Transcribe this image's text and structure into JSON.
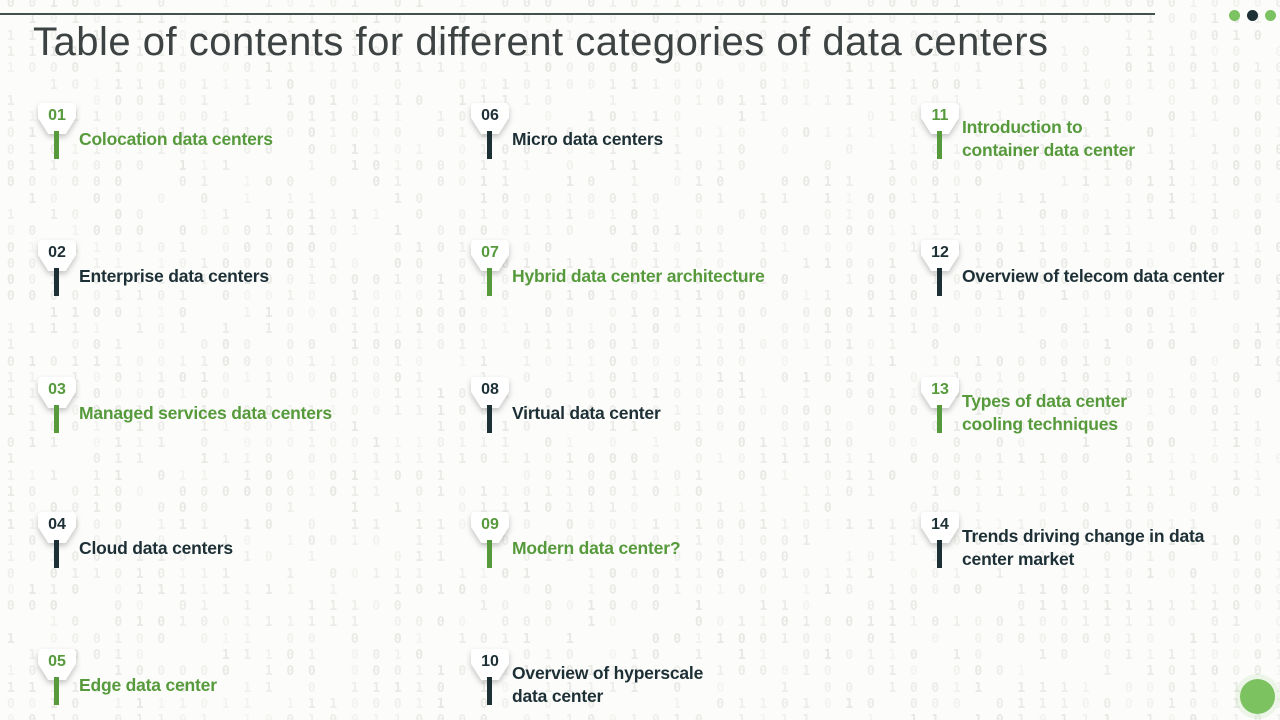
{
  "page": {
    "title": "Table of contents for different categories of data centers"
  },
  "colors": {
    "accent_green": "#569a3c",
    "accent_dark": "#1d3036",
    "light_green": "#7cc261",
    "title_color": "#3d4343",
    "top_line": "#44514f",
    "pattern_gray": "#e7e8e4"
  },
  "decor": {
    "window_dots": [
      "#7cc261",
      "#1d3036",
      "#7cc261"
    ],
    "circle_color": "#7cc261"
  },
  "toc": {
    "items": [
      {
        "number": "01",
        "label": "Colocation data centers",
        "color": "green",
        "col": 0,
        "row": 0
      },
      {
        "number": "02",
        "label": "Enterprise data centers",
        "color": "dark",
        "col": 0,
        "row": 1
      },
      {
        "number": "03",
        "label": "Managed services data centers",
        "color": "green",
        "col": 0,
        "row": 2
      },
      {
        "number": "04",
        "label": "Cloud data centers",
        "color": "dark",
        "col": 0,
        "row": 3
      },
      {
        "number": "05",
        "label": "Edge data center",
        "color": "green",
        "col": 0,
        "row": 4
      },
      {
        "number": "06",
        "label": "Micro data centers",
        "color": "dark",
        "col": 1,
        "row": 0
      },
      {
        "number": "07",
        "label": "Hybrid data center architecture",
        "color": "green",
        "col": 1,
        "row": 1
      },
      {
        "number": "08",
        "label": "Virtual data center",
        "color": "dark",
        "col": 1,
        "row": 2
      },
      {
        "number": "09",
        "label": "Modern data center?",
        "color": "green",
        "col": 1,
        "row": 3
      },
      {
        "number": "10",
        "label": "Overview of hyperscale\ndata center",
        "color": "dark",
        "col": 1,
        "row": 4
      },
      {
        "number": "11",
        "label": "Introduction to\ncontainer data center",
        "color": "green",
        "col": 2,
        "row": 0
      },
      {
        "number": "12",
        "label": "Overview of telecom data center",
        "color": "dark",
        "col": 2,
        "row": 1
      },
      {
        "number": "13",
        "label": "Types of data center\ncooling techniques",
        "color": "green",
        "col": 2,
        "row": 2
      },
      {
        "number": "14",
        "label": "Trends driving change in data\ncenter market",
        "color": "dark",
        "col": 2,
        "row": 3
      }
    ]
  }
}
